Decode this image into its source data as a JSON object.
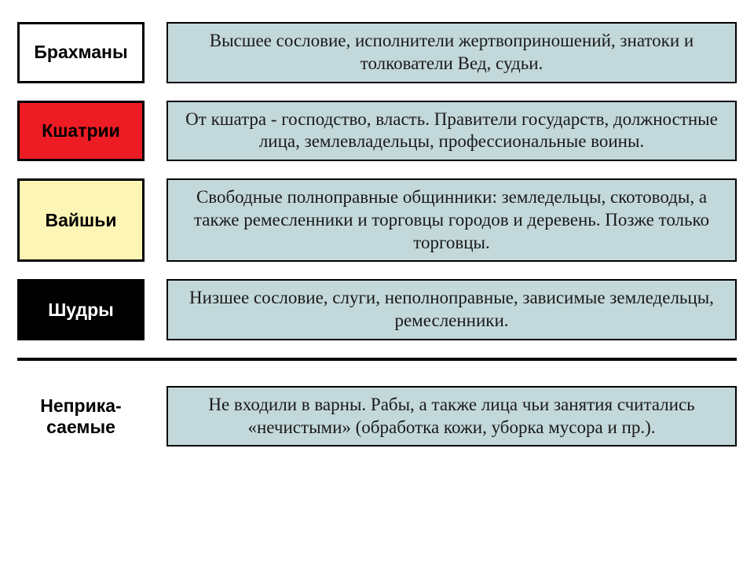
{
  "type": "infographic",
  "background_color": "#ffffff",
  "desc_background": "#c3d8da",
  "desc_border": "#000000",
  "label_border": "#000000",
  "label_font_family": "Arial",
  "label_font_weight": 700,
  "label_fontsize": 23,
  "desc_font_family": "Georgia",
  "desc_fontsize": 23,
  "divider_color": "#000000",
  "divider_thickness": 4,
  "rows": [
    {
      "label": "Брахманы",
      "label_bg": "#ffffff",
      "label_text_color": "#000000",
      "desc": "Высшее сословие, исполнители жертвоприношений, знатоки и толкователи Вед, судьи."
    },
    {
      "label": "Кшатрии",
      "label_bg": "#ed1c24",
      "label_text_color": "#000000",
      "desc": "От кшатра - господство, власть. Правители государств, должностные лица, землевладельцы, профессиональные воины."
    },
    {
      "label": "Вайшьи",
      "label_bg": "#fdf5b5",
      "label_text_color": "#000000",
      "desc": "Свободные полноправные общинники: земледельцы, скотоводы, а также ремесленники и торговцы городов и деревень. Позже только торговцы."
    },
    {
      "label": "Шудры",
      "label_bg": "#000000",
      "label_text_color": "#ffffff",
      "desc": "Низшее сословие, слуги, неполноправные, зависимые земледельцы, ремесленники."
    }
  ],
  "below": {
    "label": "Неприка-\nсаемые",
    "desc": "Не входили в варны. Рабы, а также лица чьи занятия считались «нечистыми» (обработка кожи, уборка мусора и пр.)."
  }
}
